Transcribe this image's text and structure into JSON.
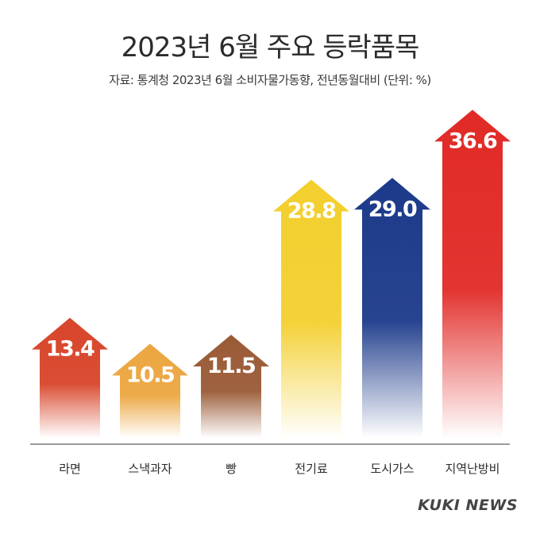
{
  "title": "2023년 6월 주요 등락품목",
  "subtitle": "자료: 통계청 2023년 6월 소비자물가동향, 전년동월대비 (단위: %)",
  "brand": "KUKI NEWS",
  "chart_data": {
    "type": "bar",
    "title": "2023년 6월 주요 등락품목",
    "subtitle": "자료: 통계청 2023년 6월 소비자물가동향, 전년동월대비 (단위: %)",
    "categories": [
      "라면",
      "스낵과자",
      "빵",
      "전기료",
      "도시가스",
      "지역난방비"
    ],
    "values": [
      13.4,
      10.5,
      11.5,
      28.8,
      29.0,
      36.6
    ],
    "labels": [
      "13.4",
      "10.5",
      "11.5",
      "28.8",
      "29.0",
      "36.6"
    ],
    "colors": [
      "#d8452a",
      "#eca640",
      "#9a5a36",
      "#f3cf2e",
      "#1c3a8a",
      "#e12a26"
    ],
    "ylim": [
      0,
      40
    ],
    "grid": false,
    "legend": "none"
  }
}
